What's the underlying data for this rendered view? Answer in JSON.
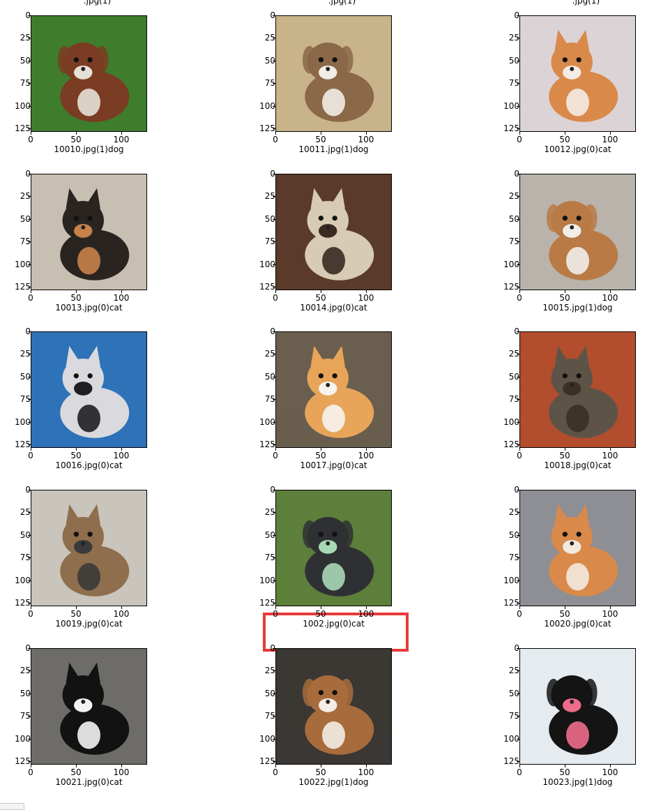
{
  "chart_data": {
    "type": "image-grid",
    "rows": 5,
    "cols": 3,
    "xlim": [
      0,
      127
    ],
    "ylim": [
      127,
      0
    ],
    "xticks": [
      0,
      50,
      100
    ],
    "yticks": [
      0,
      25,
      50,
      75,
      100,
      125
    ],
    "partial_labels_top": [
      ".jpg(1)",
      ".jpg(1)",
      ".jpg(1)"
    ],
    "highlighted_panel_label": "1002.jpg(0)cat",
    "highlight_color": "#e83a3a",
    "panels": [
      {
        "label": "10010.jpg(1)dog",
        "subject": "dog"
      },
      {
        "label": "10011.jpg(1)dog",
        "subject": "dog"
      },
      {
        "label": "10012.jpg(0)cat",
        "subject": "cat"
      },
      {
        "label": "10013.jpg(0)cat",
        "subject": "cat"
      },
      {
        "label": "10014.jpg(0)cat",
        "subject": "cat"
      },
      {
        "label": "10015.jpg(1)dog",
        "subject": "dog"
      },
      {
        "label": "10016.jpg(0)cat",
        "subject": "cat"
      },
      {
        "label": "10017.jpg(0)cat",
        "subject": "cat"
      },
      {
        "label": "10018.jpg(0)cat",
        "subject": "cat"
      },
      {
        "label": "10019.jpg(0)cat",
        "subject": "cat"
      },
      {
        "label": "1002.jpg(0)cat",
        "subject": "dog"
      },
      {
        "label": "10020.jpg(0)cat",
        "subject": "cat"
      },
      {
        "label": "10021.jpg(0)cat",
        "subject": "cat"
      },
      {
        "label": "10022.jpg(1)dog",
        "subject": "dog"
      },
      {
        "label": "10023.jpg(1)dog",
        "subject": "dog"
      }
    ]
  },
  "photo_palette": [
    {
      "bg": "#3f7d2c",
      "fg": "#7a3c22",
      "accent": "#e6e0d6"
    },
    {
      "bg": "#c9b38a",
      "fg": "#8a6848",
      "accent": "#f2ede6"
    },
    {
      "bg": "#dcd3d6",
      "fg": "#d9894a",
      "accent": "#f4ece6"
    },
    {
      "bg": "#c7bfb2",
      "fg": "#2a2420",
      "accent": "#c7824a"
    },
    {
      "bg": "#5a3a2a",
      "fg": "#d8cbb4",
      "accent": "#3a2a22"
    },
    {
      "bg": "#b9b3ab",
      "fg": "#b97a45",
      "accent": "#f1eee9"
    },
    {
      "bg": "#2e72b8",
      "fg": "#d9d9de",
      "accent": "#1f1f22"
    },
    {
      "bg": "#6a5e4e",
      "fg": "#e8a55a",
      "accent": "#f7f4ef"
    },
    {
      "bg": "#b24d2d",
      "fg": "#5d5447",
      "accent": "#3b3025"
    },
    {
      "bg": "#c9c4bc",
      "fg": "#8e6e4c",
      "accent": "#3a3a3a"
    },
    {
      "bg": "#5c7f3b",
      "fg": "#2f3034",
      "accent": "#a8d9b6"
    },
    {
      "bg": "#8e8e95",
      "fg": "#d9894a",
      "accent": "#f3e9de"
    },
    {
      "bg": "#6e6c69",
      "fg": "#121212",
      "accent": "#f3f3f3"
    },
    {
      "bg": "#3b3834",
      "fg": "#a86b3b",
      "accent": "#f2ede6"
    },
    {
      "bg": "#e5ebee",
      "fg": "#141414",
      "accent": "#ee6b8a"
    }
  ]
}
